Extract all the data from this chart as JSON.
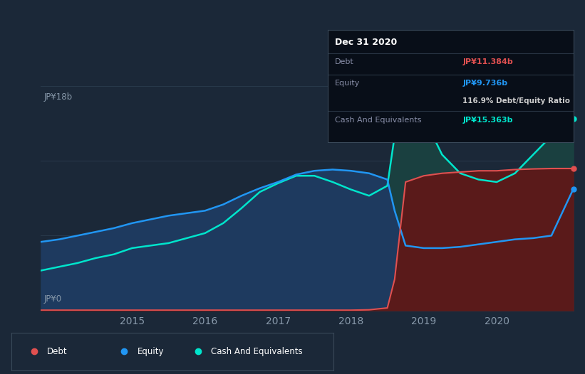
{
  "background_color": "#1b2838",
  "chart_bg_color": "#1b2838",
  "grid_color": "#2d3f50",
  "title": "Dec 31 2020",
  "tooltip": {
    "debt_label": "Debt",
    "debt_value": "JP¥11.384b",
    "equity_label": "Equity",
    "equity_value": "JP¥9.736b",
    "ratio_text": "116.9% Debt/Equity Ratio",
    "cash_label": "Cash And Equivalents",
    "cash_value": "JP¥15.363b"
  },
  "ylabel_top": "JP¥18b",
  "ylabel_bottom": "JP¥0",
  "x_ticks": [
    "2015",
    "2016",
    "2017",
    "2018",
    "2019",
    "2020"
  ],
  "ylim": [
    0,
    18
  ],
  "years": [
    2013.75,
    2014.0,
    2014.25,
    2014.5,
    2014.75,
    2015.0,
    2015.25,
    2015.5,
    2015.75,
    2016.0,
    2016.25,
    2016.5,
    2016.75,
    2017.0,
    2017.25,
    2017.5,
    2017.75,
    2018.0,
    2018.25,
    2018.5,
    2018.6,
    2018.75,
    2019.0,
    2019.25,
    2019.5,
    2019.75,
    2020.0,
    2020.25,
    2020.5,
    2020.75,
    2021.05
  ],
  "equity": [
    5.5,
    5.7,
    6.0,
    6.3,
    6.6,
    7.0,
    7.3,
    7.6,
    7.8,
    8.0,
    8.5,
    9.2,
    9.8,
    10.3,
    10.9,
    11.2,
    11.3,
    11.2,
    11.0,
    10.5,
    8.0,
    5.2,
    5.0,
    5.0,
    5.1,
    5.3,
    5.5,
    5.7,
    5.8,
    6.0,
    9.736
  ],
  "cash": [
    3.2,
    3.5,
    3.8,
    4.2,
    4.5,
    5.0,
    5.2,
    5.4,
    5.8,
    6.2,
    7.0,
    8.2,
    9.5,
    10.2,
    10.8,
    10.8,
    10.3,
    9.7,
    9.2,
    10.0,
    14.0,
    18.2,
    15.5,
    12.5,
    11.0,
    10.5,
    10.3,
    11.0,
    12.5,
    14.0,
    15.363
  ],
  "debt": [
    0.02,
    0.02,
    0.02,
    0.02,
    0.02,
    0.02,
    0.02,
    0.02,
    0.02,
    0.02,
    0.02,
    0.02,
    0.02,
    0.02,
    0.02,
    0.02,
    0.02,
    0.02,
    0.05,
    0.2,
    2.5,
    10.3,
    10.8,
    11.0,
    11.1,
    11.2,
    11.2,
    11.3,
    11.35,
    11.384,
    11.384
  ],
  "equity_color": "#2196f3",
  "equity_fill": "#1e3a5f",
  "cash_color": "#00e5cc",
  "cash_fill": "#1a4040",
  "debt_color": "#e05050",
  "debt_fill": "#5a1a1a",
  "legend_items": [
    "Debt",
    "Equity",
    "Cash And Equivalents"
  ],
  "legend_colors": [
    "#e05050",
    "#2196f3",
    "#00e5cc"
  ],
  "tooltip_bg": "#080e18",
  "tooltip_border": "#3a4a5a",
  "marker_color_debt": "#e05050",
  "marker_color_equity": "#2196f3",
  "marker_color_cash": "#00e5cc"
}
